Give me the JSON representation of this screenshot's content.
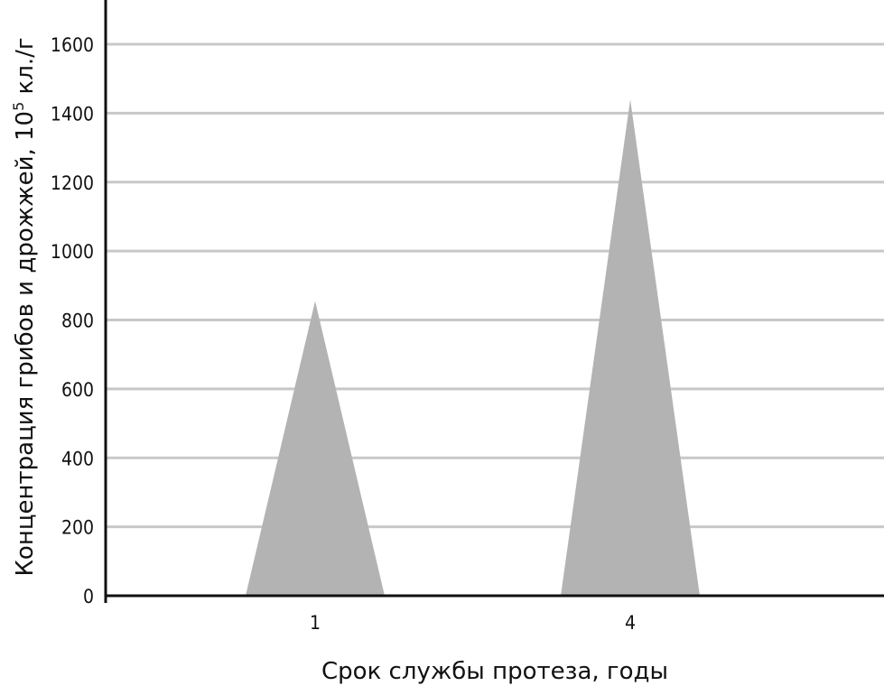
{
  "chart_data": {
    "type": "area",
    "title": "",
    "xlabel": "Срок службы протеза, годы",
    "ylabel": "Концентрация грибов и дрожжей, 10",
    "ylabel_superscript": "5",
    "ylabel_unit": " кл./г",
    "categories": [
      "1",
      "4"
    ],
    "values": [
      855,
      1440
    ],
    "yticks": [
      "0",
      "200",
      "400",
      "600",
      "800",
      "1000",
      "1200",
      "1400",
      "1600"
    ],
    "ylim": [
      0,
      1728
    ],
    "grid": true,
    "colors": {
      "fill": "#b3b3b3",
      "grid": "#c8c8c8",
      "axis": "#111111"
    }
  }
}
